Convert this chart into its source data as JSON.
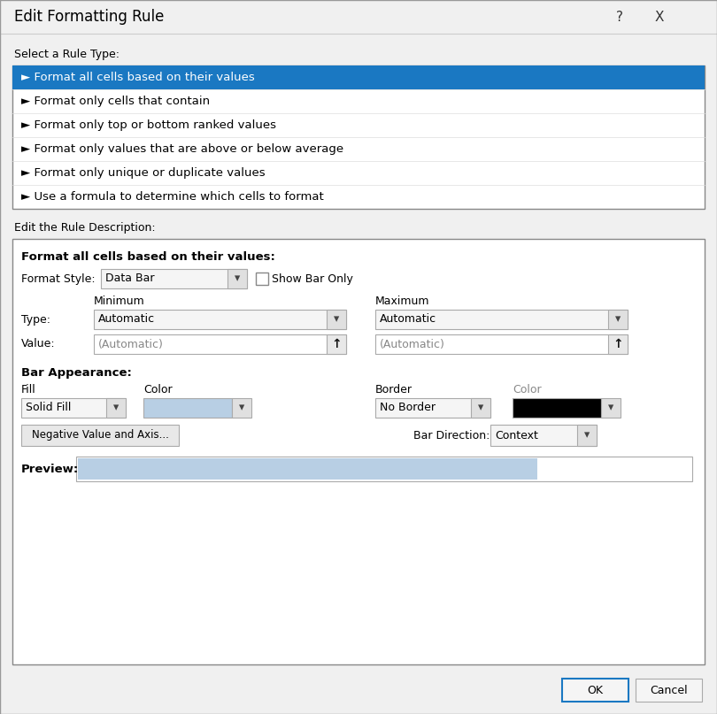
{
  "bg_color": "#f0f0f0",
  "selected_row_bg": "#1a78c2",
  "selected_row_text": "#ffffff",
  "rule_types": [
    "► Format all cells based on their values",
    "► Format only cells that contain",
    "► Format only top or bottom ranked values",
    "► Format only values that are above or below average",
    "► Format only unique or duplicate values",
    "► Use a formula to determine which cells to format"
  ],
  "title_text": "Edit Formatting Rule",
  "section1_label": "Select a Rule Type:",
  "section2_label": "Edit the Rule Description:",
  "format_all_bold": "Format all cells based on their values:",
  "format_style_label": "Format Style:",
  "format_style_value": "Data Bar",
  "show_bar_only": "Show Bar Only",
  "minimum_label": "Minimum",
  "maximum_label": "Maximum",
  "type_label": "Type:",
  "value_label": "Value:",
  "type_min_value": "Automatic",
  "type_max_value": "Automatic",
  "value_min": "(Automatic)",
  "value_max": "(Automatic)",
  "bar_appearance_label": "Bar Appearance:",
  "fill_label": "Fill",
  "color_label1": "Color",
  "border_label": "Border",
  "color_label2": "Color",
  "fill_value": "Solid Fill",
  "fill_color": "#b8cfe4",
  "border_value": "No Border",
  "border_color_value": "#000000",
  "neg_button": "Negative Value and Axis...",
  "bar_direction_label": "Bar Direction:",
  "bar_direction_value": "Context",
  "preview_label": "Preview:",
  "preview_bar_color": "#b8cfe4",
  "ok_button": "OK",
  "cancel_button": "Cancel"
}
